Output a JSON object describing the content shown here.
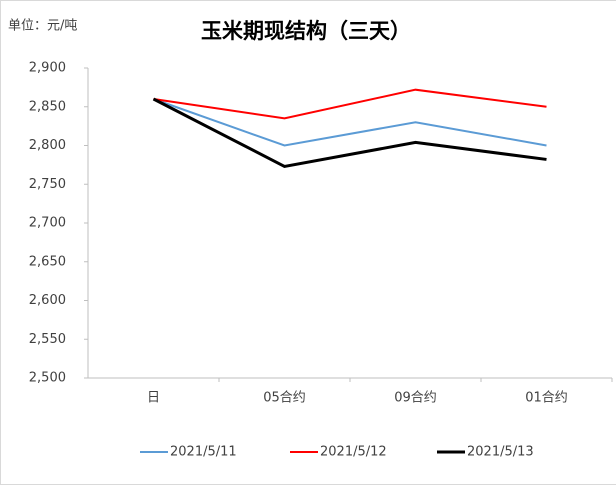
{
  "chart_data": {
    "type": "line",
    "title": "玉米期现结构（三天）",
    "unit_label": "单位：元/吨",
    "categories": [
      "日",
      "05合约",
      "09合约",
      "01合约"
    ],
    "series": [
      {
        "name": "2021/5/11",
        "color": "#5b9bd5",
        "width": 2,
        "values": [
          2860,
          2800,
          2830,
          2800
        ]
      },
      {
        "name": "2021/5/12",
        "color": "#ff0000",
        "width": 2,
        "values": [
          2860,
          2835,
          2872,
          2850
        ]
      },
      {
        "name": "2021/5/13",
        "color": "#000000",
        "width": 3,
        "values": [
          2860,
          2773,
          2804,
          2782
        ]
      }
    ],
    "ylim": [
      2500,
      2900
    ],
    "yticks": [
      {
        "value": 2500,
        "label": "2,500"
      },
      {
        "value": 2550,
        "label": "2,550"
      },
      {
        "value": 2600,
        "label": "2,600"
      },
      {
        "value": 2650,
        "label": "2,650"
      },
      {
        "value": 2700,
        "label": "2,700"
      },
      {
        "value": 2750,
        "label": "2,750"
      },
      {
        "value": 2800,
        "label": "2,800"
      },
      {
        "value": 2850,
        "label": "2,850"
      },
      {
        "value": 2900,
        "label": "2,900"
      }
    ],
    "legend": "bottom"
  }
}
